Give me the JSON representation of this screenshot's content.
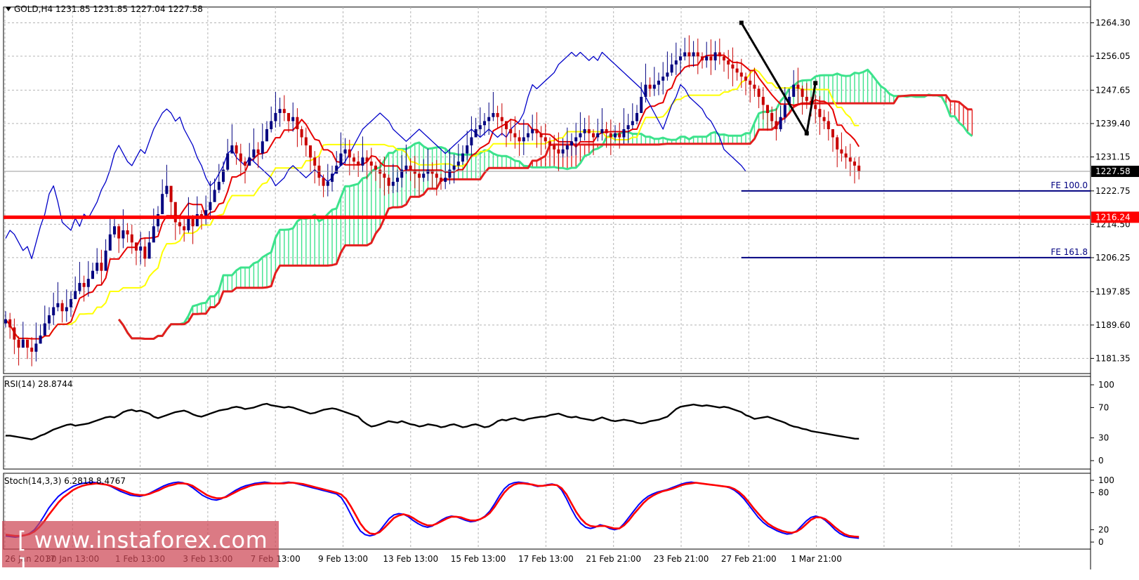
{
  "header": {
    "symbol": "GOLD,H4",
    "ohlc": "1231.85 1231.85 1227.04 1227.58"
  },
  "colors": {
    "cloud_bull": "#3ce38c",
    "cloud_bear": "#e31e1e",
    "tenkan": "#e60000",
    "kijun": "#ffff00",
    "chikou": "#0000c8",
    "bull_candle": "#000080",
    "bear_candle": "#c80000",
    "level_line": "#ff0000",
    "fe_line": "#000080",
    "rsi_line": "#000000",
    "stoch_main": "#0000ff",
    "stoch_signal": "#ff0000"
  },
  "watermark": "[ www.instaforex.com ]",
  "chart_data": [
    {
      "type": "candlestick",
      "panel": "price",
      "price_axis": [
        "1264.30",
        "1256.05",
        "1247.65",
        "1239.40",
        "1231.15",
        "1222.75",
        "1214.50",
        "1206.25",
        "1197.85",
        "1189.60",
        "1181.35"
      ],
      "ylim": [
        1177.6,
        1268.2
      ],
      "time_labels": [
        "26 Jan 2017",
        "30 Jan 13:00",
        "1 Feb 13:00",
        "3 Feb 13:00",
        "7 Feb 13:00",
        "9 Feb 13:00",
        "13 Feb 13:00",
        "15 Feb 13:00",
        "17 Feb 13:00",
        "21 Feb 21:00",
        "23 Feb 21:00",
        "27 Feb 21:00",
        "1 Mar 21:00"
      ],
      "current_price_label": "1227.58",
      "current_price": 1227.58,
      "horizontal_levels": [
        {
          "label": "1216.24",
          "value": 1216.24,
          "style": "thick-red"
        },
        {
          "label": "FE 100.0",
          "value": 1222.75,
          "style": "fe"
        },
        {
          "label": "FE 161.8",
          "value": 1206.25,
          "style": "fe"
        }
      ],
      "trend_line": {
        "from_bar": 169,
        "from_price": 1264.3,
        "to_bar": 184,
        "to_price": 1237.0,
        "then_bar": 186,
        "then_price": 1249.4
      },
      "closes": [
        1191,
        1189,
        1186,
        1184,
        1186,
        1184,
        1183,
        1185,
        1187,
        1190,
        1192,
        1194,
        1195,
        1193,
        1194,
        1196,
        1198,
        1200,
        1199,
        1201,
        1203,
        1205,
        1203,
        1208,
        1212,
        1214,
        1211,
        1213,
        1212,
        1210,
        1208,
        1209,
        1206,
        1210,
        1214,
        1217,
        1222,
        1224,
        1220,
        1215,
        1214,
        1213,
        1216,
        1214,
        1217,
        1216,
        1218,
        1220,
        1223,
        1225,
        1228,
        1232,
        1234,
        1232,
        1230,
        1229,
        1231,
        1233,
        1232,
        1235,
        1238,
        1240,
        1242,
        1243,
        1242,
        1240,
        1241,
        1238,
        1236,
        1234,
        1231,
        1229,
        1226,
        1224,
        1225,
        1227,
        1229,
        1232,
        1233,
        1231,
        1230,
        1229,
        1231,
        1230,
        1229,
        1228,
        1227,
        1226,
        1224,
        1225,
        1226,
        1228,
        1229,
        1228,
        1227,
        1226,
        1227,
        1228,
        1227,
        1226,
        1225,
        1226,
        1228,
        1229,
        1230,
        1232,
        1234,
        1236,
        1238,
        1239,
        1240,
        1241,
        1242,
        1241,
        1240,
        1238,
        1237,
        1236,
        1235,
        1236,
        1237,
        1238,
        1237,
        1236,
        1235,
        1234,
        1233,
        1232,
        1233,
        1234,
        1235,
        1236,
        1237,
        1238,
        1237,
        1236,
        1237,
        1238,
        1237,
        1236,
        1237,
        1236,
        1238,
        1239,
        1240,
        1242,
        1246,
        1249,
        1248,
        1249,
        1250,
        1251,
        1252,
        1254,
        1255,
        1256,
        1257,
        1256,
        1257,
        1256,
        1255,
        1256,
        1255,
        1257,
        1256,
        1255,
        1254,
        1253,
        1252,
        1251,
        1250,
        1249,
        1248,
        1246,
        1244,
        1242,
        1240,
        1238,
        1241,
        1244,
        1246,
        1249,
        1248,
        1246,
        1245,
        1244,
        1243,
        1241,
        1240,
        1238,
        1236,
        1233,
        1232,
        1231,
        1230,
        1229,
        1227.58
      ]
    },
    {
      "type": "line",
      "panel": "rsi",
      "title": "RSI(14) 28.8744",
      "levels": [
        "100",
        "70",
        "30",
        "0"
      ],
      "ylim": [
        0,
        100
      ],
      "values": [
        33,
        33,
        32,
        31,
        30,
        29,
        28,
        30,
        33,
        35,
        38,
        41,
        43,
        45,
        47,
        48,
        46,
        47,
        48,
        49,
        51,
        53,
        55,
        57,
        58,
        57,
        60,
        64,
        66,
        67,
        65,
        66,
        64,
        62,
        58,
        56,
        58,
        60,
        62,
        64,
        65,
        66,
        64,
        61,
        59,
        58,
        60,
        62,
        64,
        66,
        67,
        68,
        70,
        71,
        70,
        68,
        69,
        70,
        72,
        74,
        75,
        73,
        72,
        71,
        70,
        71,
        70,
        68,
        66,
        64,
        62,
        63,
        65,
        67,
        68,
        69,
        68,
        66,
        64,
        62,
        60,
        58,
        52,
        48,
        45,
        46,
        48,
        50,
        52,
        51,
        50,
        52,
        50,
        48,
        47,
        45,
        46,
        48,
        47,
        46,
        44,
        45,
        47,
        48,
        46,
        44,
        45,
        47,
        48,
        46,
        44,
        45,
        48,
        52,
        54,
        53,
        55,
        56,
        54,
        53,
        55,
        56,
        57,
        58,
        58,
        60,
        61,
        62,
        60,
        58,
        57,
        58,
        56,
        55,
        54,
        53,
        55,
        57,
        55,
        53,
        52,
        53,
        54,
        53,
        52,
        50,
        49,
        50,
        52,
        53,
        54,
        56,
        58,
        63,
        68,
        71,
        72,
        73,
        74,
        73,
        72,
        73,
        72,
        71,
        70,
        71,
        70,
        68,
        66,
        64,
        60,
        58,
        55,
        56,
        57,
        58,
        56,
        54,
        52,
        50,
        47,
        45,
        44,
        42,
        41,
        39,
        38,
        37,
        36,
        35,
        34,
        33,
        32,
        31,
        30,
        29,
        28.87
      ]
    },
    {
      "type": "line",
      "panel": "stochastic",
      "title": "Stoch(14,3,3) 6.2818 8.4767",
      "levels": [
        "100",
        "80",
        "20",
        "0"
      ],
      "ylim": [
        0,
        100
      ],
      "series": [
        {
          "name": "6.2818",
          "values": [
            10,
            9,
            8,
            9,
            11,
            14,
            20,
            30,
            42,
            55,
            65,
            74,
            80,
            85,
            90,
            93,
            95,
            96,
            97,
            96,
            95,
            93,
            90,
            86,
            82,
            79,
            76,
            75,
            74,
            76,
            79,
            83,
            87,
            91,
            94,
            96,
            97,
            96,
            93,
            88,
            82,
            76,
            72,
            69,
            68,
            70,
            74,
            79,
            84,
            88,
            91,
            93,
            95,
            96,
            97,
            96,
            95,
            95,
            96,
            97,
            96,
            94,
            92,
            90,
            88,
            86,
            84,
            82,
            80,
            78,
            72,
            60,
            45,
            30,
            18,
            12,
            10,
            12,
            18,
            28,
            38,
            44,
            46,
            45,
            41,
            35,
            30,
            26,
            24,
            26,
            31,
            36,
            40,
            42,
            41,
            38,
            35,
            33,
            34,
            37,
            42,
            50,
            62,
            75,
            86,
            93,
            96,
            97,
            96,
            95,
            92,
            90,
            91,
            93,
            94,
            92,
            84,
            70,
            54,
            40,
            30,
            24,
            22,
            24,
            28,
            26,
            22,
            20,
            22,
            30,
            40,
            50,
            60,
            68,
            74,
            78,
            81,
            83,
            85,
            88,
            91,
            94,
            96,
            97,
            96,
            95,
            94,
            93,
            92,
            91,
            90,
            88,
            84,
            78,
            70,
            60,
            50,
            40,
            32,
            26,
            22,
            18,
            15,
            13,
            14,
            18,
            26,
            34,
            40,
            42,
            40,
            35,
            28,
            20,
            14,
            10,
            8,
            7,
            6.28
          ]
        },
        {
          "name": "8.4767",
          "values": [
            12,
            11,
            10,
            10,
            11,
            13,
            17,
            24,
            33,
            44,
            54,
            64,
            72,
            78,
            84,
            88,
            91,
            93,
            94,
            95,
            94,
            93,
            91,
            88,
            85,
            82,
            79,
            77,
            76,
            76,
            78,
            81,
            84,
            88,
            91,
            93,
            95,
            95,
            94,
            91,
            86,
            81,
            76,
            73,
            71,
            71,
            73,
            77,
            81,
            85,
            88,
            91,
            93,
            94,
            95,
            95,
            95,
            95,
            95,
            96,
            96,
            95,
            94,
            92,
            90,
            88,
            86,
            84,
            82,
            80,
            77,
            70,
            58,
            44,
            30,
            20,
            14,
            13,
            16,
            23,
            31,
            39,
            43,
            45,
            43,
            39,
            34,
            30,
            27,
            27,
            30,
            34,
            38,
            41,
            41,
            40,
            37,
            35,
            35,
            37,
            41,
            47,
            57,
            69,
            80,
            88,
            93,
            95,
            95,
            94,
            93,
            91,
            91,
            92,
            93,
            92,
            87,
            77,
            63,
            49,
            38,
            30,
            26,
            25,
            26,
            26,
            24,
            22,
            22,
            27,
            35,
            45,
            54,
            63,
            70,
            75,
            79,
            82,
            84,
            86,
            89,
            92,
            94,
            95,
            96,
            95,
            94,
            93,
            92,
            91,
            90,
            89,
            86,
            81,
            74,
            65,
            55,
            46,
            37,
            30,
            25,
            21,
            18,
            16,
            15,
            17,
            22,
            29,
            36,
            40,
            40,
            37,
            31,
            24,
            18,
            13,
            10,
            9,
            8.48
          ]
        }
      ]
    }
  ]
}
